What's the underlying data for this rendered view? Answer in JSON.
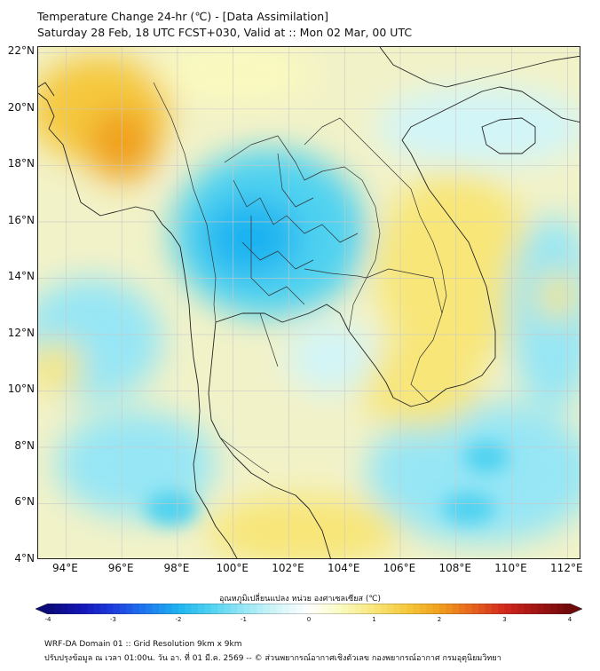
{
  "title": {
    "line1": "Temperature Change 24-hr (℃) - [Data Assimilation]",
    "line2": "Saturday 28 Feb, 18 UTC FCST+030, Valid at :: Mon 02 Mar, 00 UTC"
  },
  "map": {
    "lon_range": [
      93,
      112.5
    ],
    "lat_range": [
      4,
      22.2
    ],
    "lat_labels": [
      "22°N",
      "20°N",
      "18°N",
      "16°N",
      "14°N",
      "12°N",
      "10°N",
      "8°N",
      "6°N",
      "4°N"
    ],
    "lat_values": [
      22,
      20,
      18,
      16,
      14,
      12,
      10,
      8,
      6,
      4
    ],
    "lon_labels": [
      "94°E",
      "96°E",
      "98°E",
      "100°E",
      "102°E",
      "104°E",
      "106°E",
      "108°E",
      "110°E",
      "112°E"
    ],
    "lon_values": [
      94,
      96,
      98,
      100,
      102,
      104,
      106,
      108,
      110,
      112
    ],
    "background_color": "#f2f2c8",
    "coastline_color": "#222222",
    "gridline_color": "#c8c8c8"
  },
  "colorbar": {
    "title": "อุณหภูมิเปลี่ยนแปลง หน่วย องศาเซลเซียส (℃)",
    "min": -4,
    "max": 4,
    "tick_labels": [
      "-4",
      "-3",
      "-2",
      "-1",
      "0",
      "1",
      "2",
      "3",
      "4"
    ],
    "tick_values": [
      -4,
      -3,
      -2,
      -1,
      0,
      1,
      2,
      3,
      4
    ],
    "colors": [
      "#0a0a78",
      "#1414b4",
      "#1e3cdc",
      "#1e78f0",
      "#1eb4f0",
      "#50d2f0",
      "#96e6f5",
      "#d2f5f8",
      "#ffffff",
      "#fafabe",
      "#f8e678",
      "#f5c83c",
      "#f0a01e",
      "#e6641e",
      "#d2281e",
      "#a01414",
      "#6e0a0a"
    ]
  },
  "footer": {
    "line1": "WRF-DA Domain 01 :: Grid Resolution 9km x 9km",
    "line2": "ปรับปรุงข้อมูล ณ เวลา 01:00น. วัน อา. ที่ 01 มี.ค. 2569 -- © ส่วนพยากรณ์อากาศเชิงตัวเลข กองพยากรณ์อากาศ กรมอุตุนิยมวิทยา"
  }
}
